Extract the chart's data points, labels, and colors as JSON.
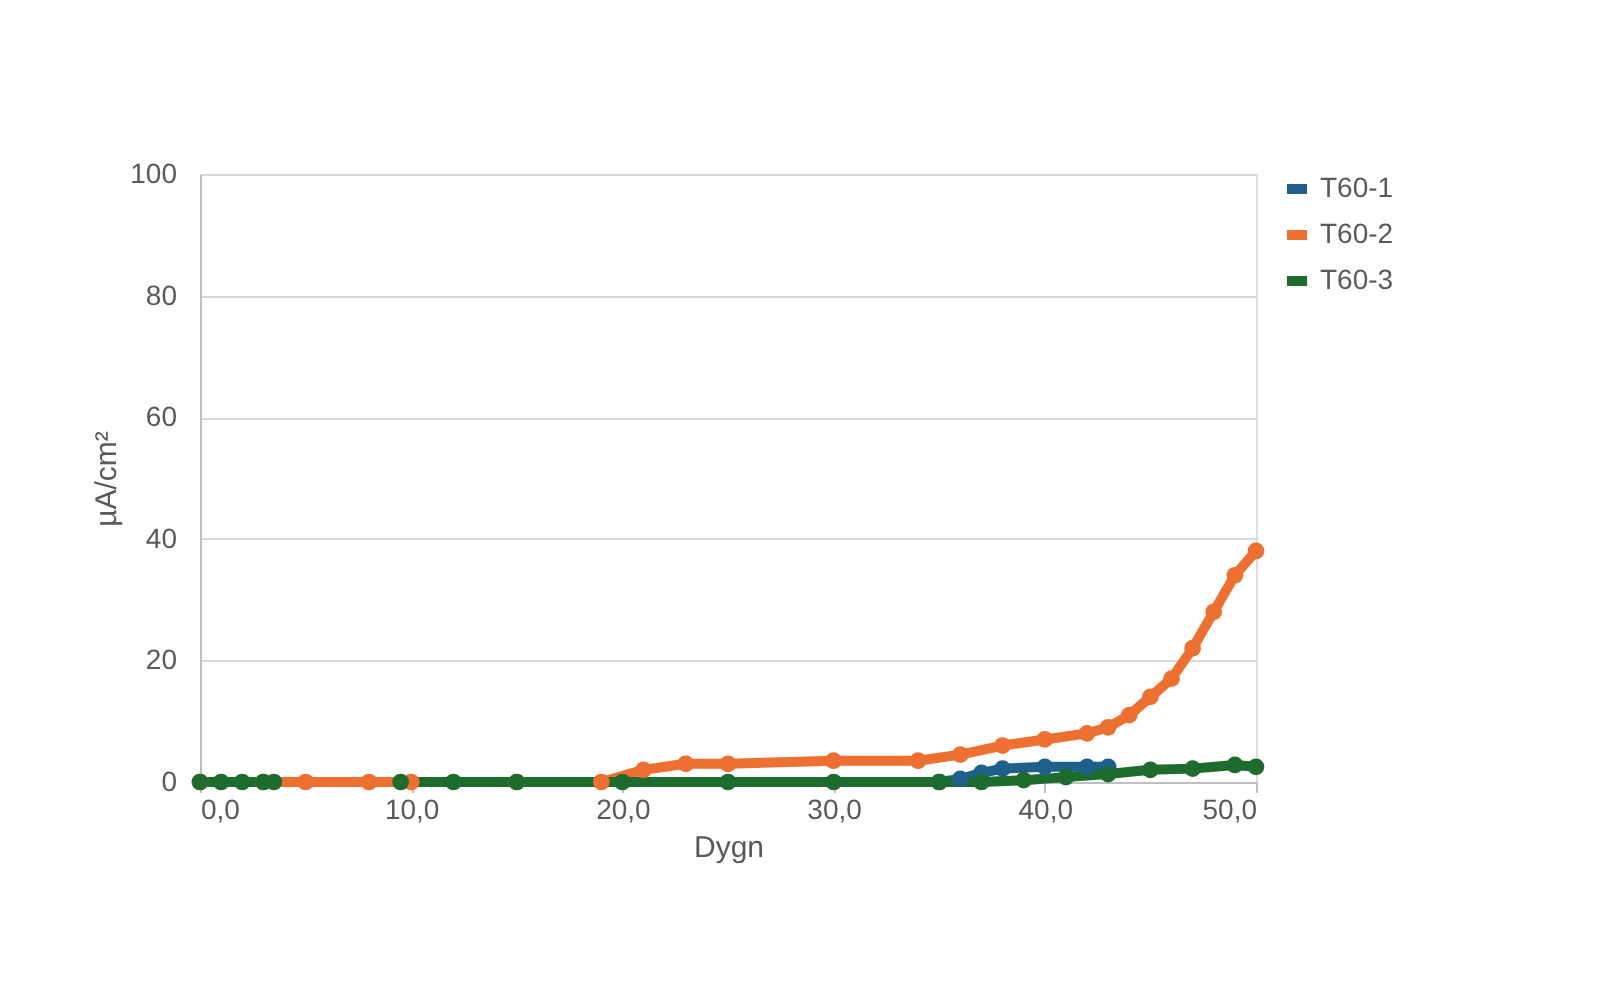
{
  "chart_data": {
    "type": "line",
    "xlabel": "Dygn",
    "ylabel": "µA/cm²",
    "xlim": [
      0,
      50
    ],
    "ylim": [
      0,
      100
    ],
    "xticks": [
      {
        "value": 0,
        "label": "0,0"
      },
      {
        "value": 10,
        "label": "10,0"
      },
      {
        "value": 20,
        "label": "20,0"
      },
      {
        "value": 30,
        "label": "30,0"
      },
      {
        "value": 40,
        "label": "40,0"
      },
      {
        "value": 50,
        "label": "50,0"
      }
    ],
    "yticks": [
      0,
      20,
      40,
      60,
      80,
      100
    ],
    "grid": "y",
    "legend": "right",
    "marker": "circle",
    "line_style": "solid",
    "series": [
      {
        "name": "T60-1",
        "color": "#1f5f8b",
        "x": [
          35,
          36,
          37,
          38,
          40,
          42,
          43
        ],
        "values": [
          0,
          0.5,
          1.5,
          2.2,
          2.5,
          2.5,
          2.5
        ]
      },
      {
        "name": "T60-2",
        "color": "#ed7030",
        "x": [
          0,
          3,
          5,
          8,
          10,
          15,
          19,
          21,
          23,
          25,
          30,
          34,
          36,
          38,
          40,
          42,
          43,
          44,
          45,
          46,
          47,
          48,
          49,
          50
        ],
        "values": [
          0,
          0,
          0,
          0,
          0,
          0,
          0,
          2,
          3,
          3,
          3.5,
          3.5,
          4.5,
          6,
          7,
          8,
          9,
          11,
          14,
          17,
          22,
          28,
          34,
          38
        ]
      },
      {
        "name": "T60-3",
        "color": "#1e6b2e",
        "x": [
          0,
          1,
          2,
          3,
          3.5,
          6,
          9.5,
          12,
          15,
          20,
          25,
          30,
          35,
          37,
          39,
          41,
          43,
          45,
          47,
          49,
          50
        ],
        "values": [
          0,
          0,
          0,
          0,
          0,
          null,
          0,
          0,
          0,
          0,
          0,
          0,
          0,
          0,
          0.3,
          0.8,
          1.3,
          2,
          2.2,
          2.8,
          2.5
        ]
      }
    ]
  }
}
